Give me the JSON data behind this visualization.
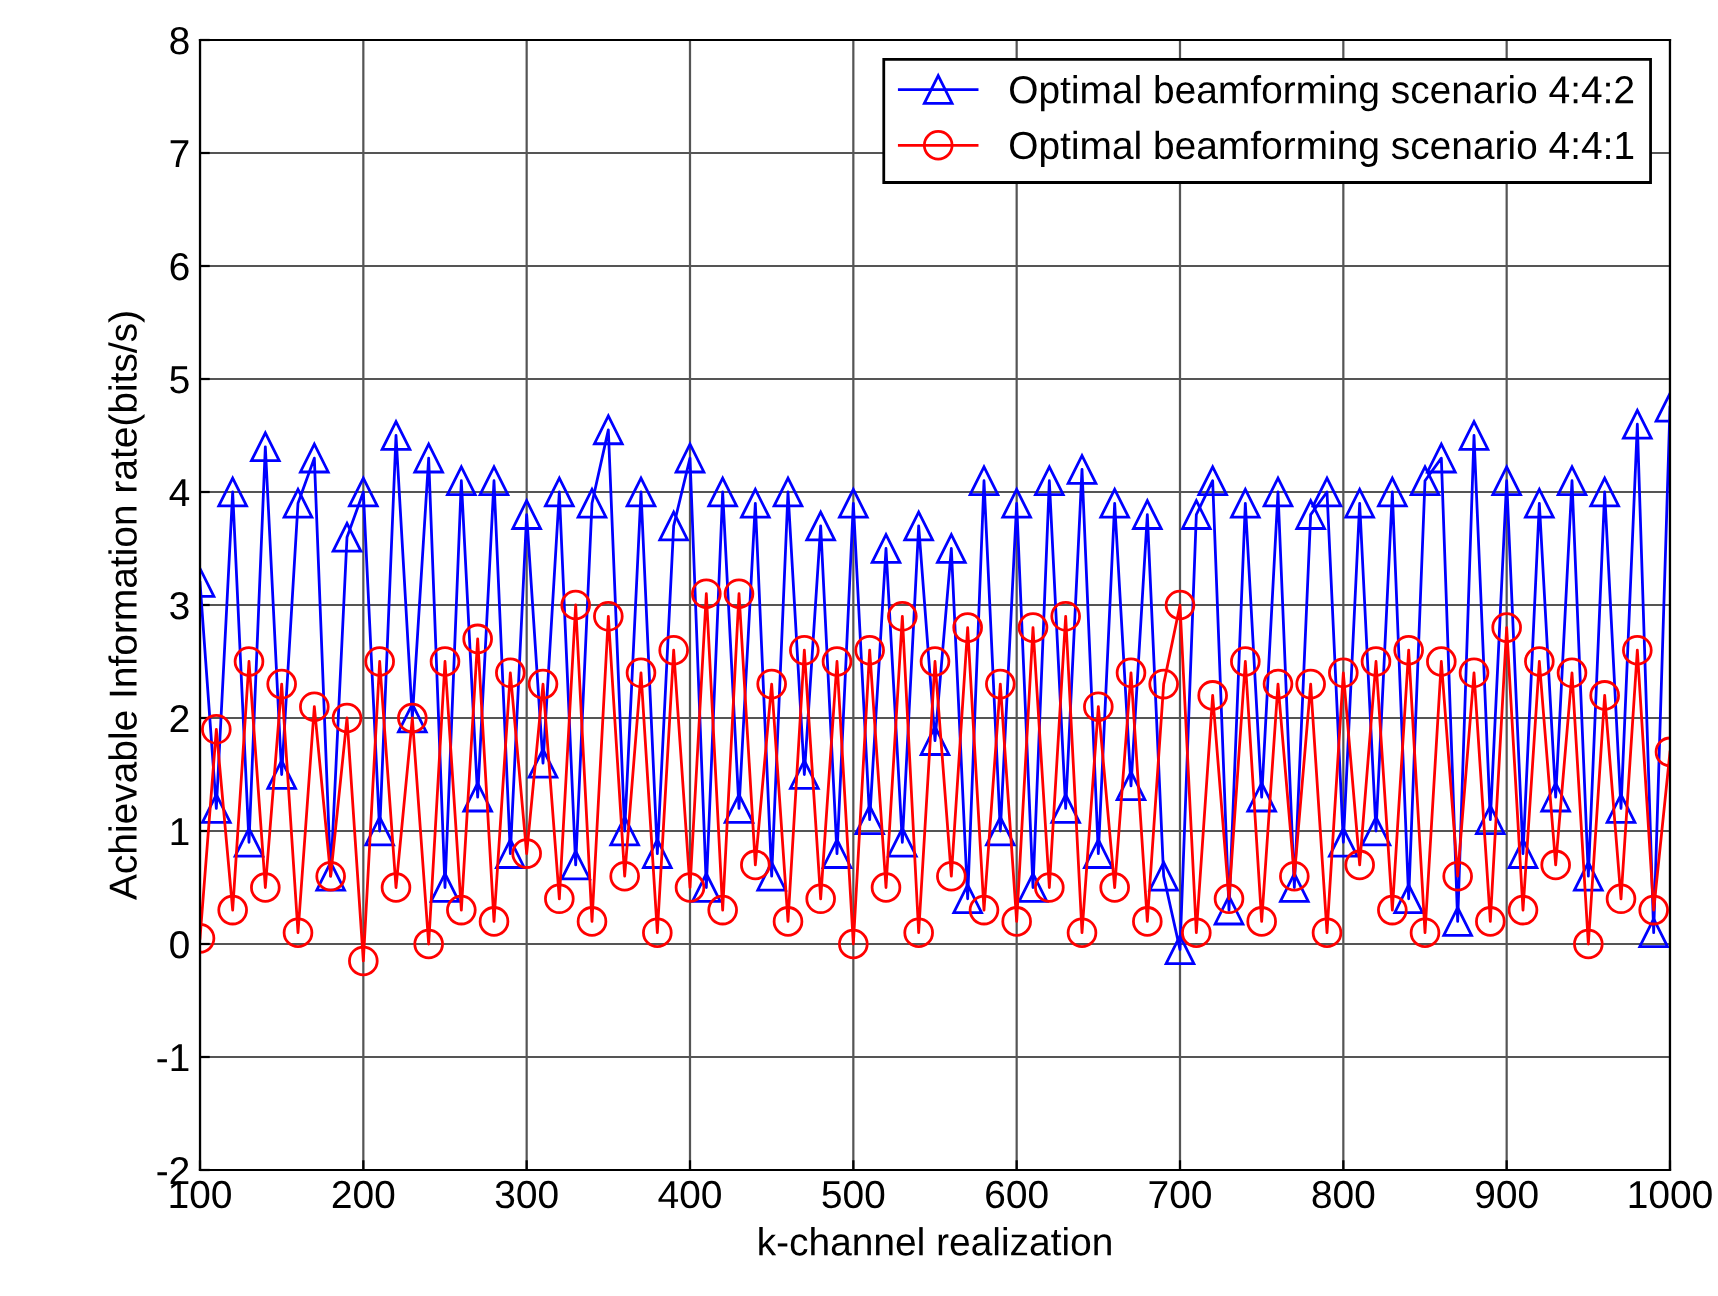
{
  "chart_data": {
    "type": "line",
    "xlabel": "k-channel realization",
    "ylabel": "Achievable Information rate(bits/s)",
    "x": [
      100,
      110,
      120,
      130,
      140,
      150,
      160,
      170,
      180,
      190,
      200,
      210,
      220,
      230,
      240,
      250,
      260,
      270,
      280,
      290,
      300,
      310,
      320,
      330,
      340,
      350,
      360,
      370,
      380,
      390,
      400,
      410,
      420,
      430,
      440,
      450,
      460,
      470,
      480,
      490,
      500,
      510,
      520,
      530,
      540,
      550,
      560,
      570,
      580,
      590,
      600,
      610,
      620,
      630,
      640,
      650,
      660,
      670,
      680,
      690,
      700,
      710,
      720,
      730,
      740,
      750,
      760,
      770,
      780,
      790,
      800,
      810,
      820,
      830,
      840,
      850,
      860,
      870,
      880,
      890,
      900,
      910,
      920,
      930,
      940,
      950,
      960,
      970,
      980,
      990,
      1000
    ],
    "series": [
      {
        "name": "Optimal beamforming scenario 4:4:2",
        "color": "#0000ff",
        "marker": "triangle",
        "values": [
          3.2,
          1.2,
          4.0,
          0.9,
          4.4,
          1.5,
          3.9,
          4.3,
          0.6,
          3.6,
          4.0,
          1.0,
          4.5,
          2.0,
          4.3,
          0.5,
          4.1,
          1.3,
          4.1,
          0.8,
          3.8,
          1.6,
          4.0,
          0.7,
          3.9,
          4.55,
          1.0,
          4.0,
          0.8,
          3.7,
          4.3,
          0.5,
          4.0,
          1.2,
          3.9,
          0.6,
          4.0,
          1.5,
          3.7,
          0.8,
          3.9,
          1.1,
          3.5,
          0.9,
          3.7,
          1.8,
          3.5,
          0.4,
          4.1,
          1.0,
          3.9,
          0.5,
          4.1,
          1.2,
          4.2,
          0.8,
          3.9,
          1.4,
          3.8,
          0.6,
          -0.05,
          3.8,
          4.1,
          0.3,
          3.9,
          1.3,
          4.0,
          0.5,
          3.8,
          4.0,
          0.9,
          3.9,
          1.0,
          4.0,
          0.4,
          4.1,
          4.3,
          0.2,
          4.5,
          1.1,
          4.1,
          0.8,
          3.9,
          1.3,
          4.1,
          0.6,
          4.0,
          1.2,
          4.6,
          0.1,
          4.75
        ]
      },
      {
        "name": "Optimal beamforming scenario 4:4:1",
        "color": "#ff0000",
        "marker": "circle",
        "values": [
          0.05,
          1.9,
          0.3,
          2.5,
          0.5,
          2.3,
          0.1,
          2.1,
          0.6,
          2.0,
          -0.15,
          2.5,
          0.5,
          2.0,
          0.0,
          2.5,
          0.3,
          2.7,
          0.2,
          2.4,
          0.8,
          2.3,
          0.4,
          3.0,
          0.2,
          2.9,
          0.6,
          2.4,
          0.1,
          2.6,
          0.5,
          3.1,
          0.3,
          3.1,
          0.7,
          2.3,
          0.2,
          2.6,
          0.4,
          2.5,
          0.0,
          2.6,
          0.5,
          2.9,
          0.1,
          2.5,
          0.6,
          2.8,
          0.3,
          2.3,
          0.2,
          2.8,
          0.5,
          2.9,
          0.1,
          2.1,
          0.5,
          2.4,
          0.2,
          2.3,
          3.0,
          0.1,
          2.2,
          0.4,
          2.5,
          0.2,
          2.3,
          0.6,
          2.3,
          0.1,
          2.4,
          0.7,
          2.5,
          0.3,
          2.6,
          0.1,
          2.5,
          0.6,
          2.4,
          0.2,
          2.8,
          0.3,
          2.5,
          0.7,
          2.4,
          0.0,
          2.2,
          0.4,
          2.6,
          0.3,
          1.7
        ]
      }
    ],
    "xlim": [
      100,
      1000
    ],
    "ylim": [
      -2,
      8
    ],
    "xticks": [
      100,
      200,
      300,
      400,
      500,
      600,
      700,
      800,
      900,
      1000
    ],
    "yticks": [
      -2,
      -1,
      0,
      1,
      2,
      3,
      4,
      5,
      6,
      7,
      8
    ],
    "grid": true,
    "legend": "top right"
  }
}
